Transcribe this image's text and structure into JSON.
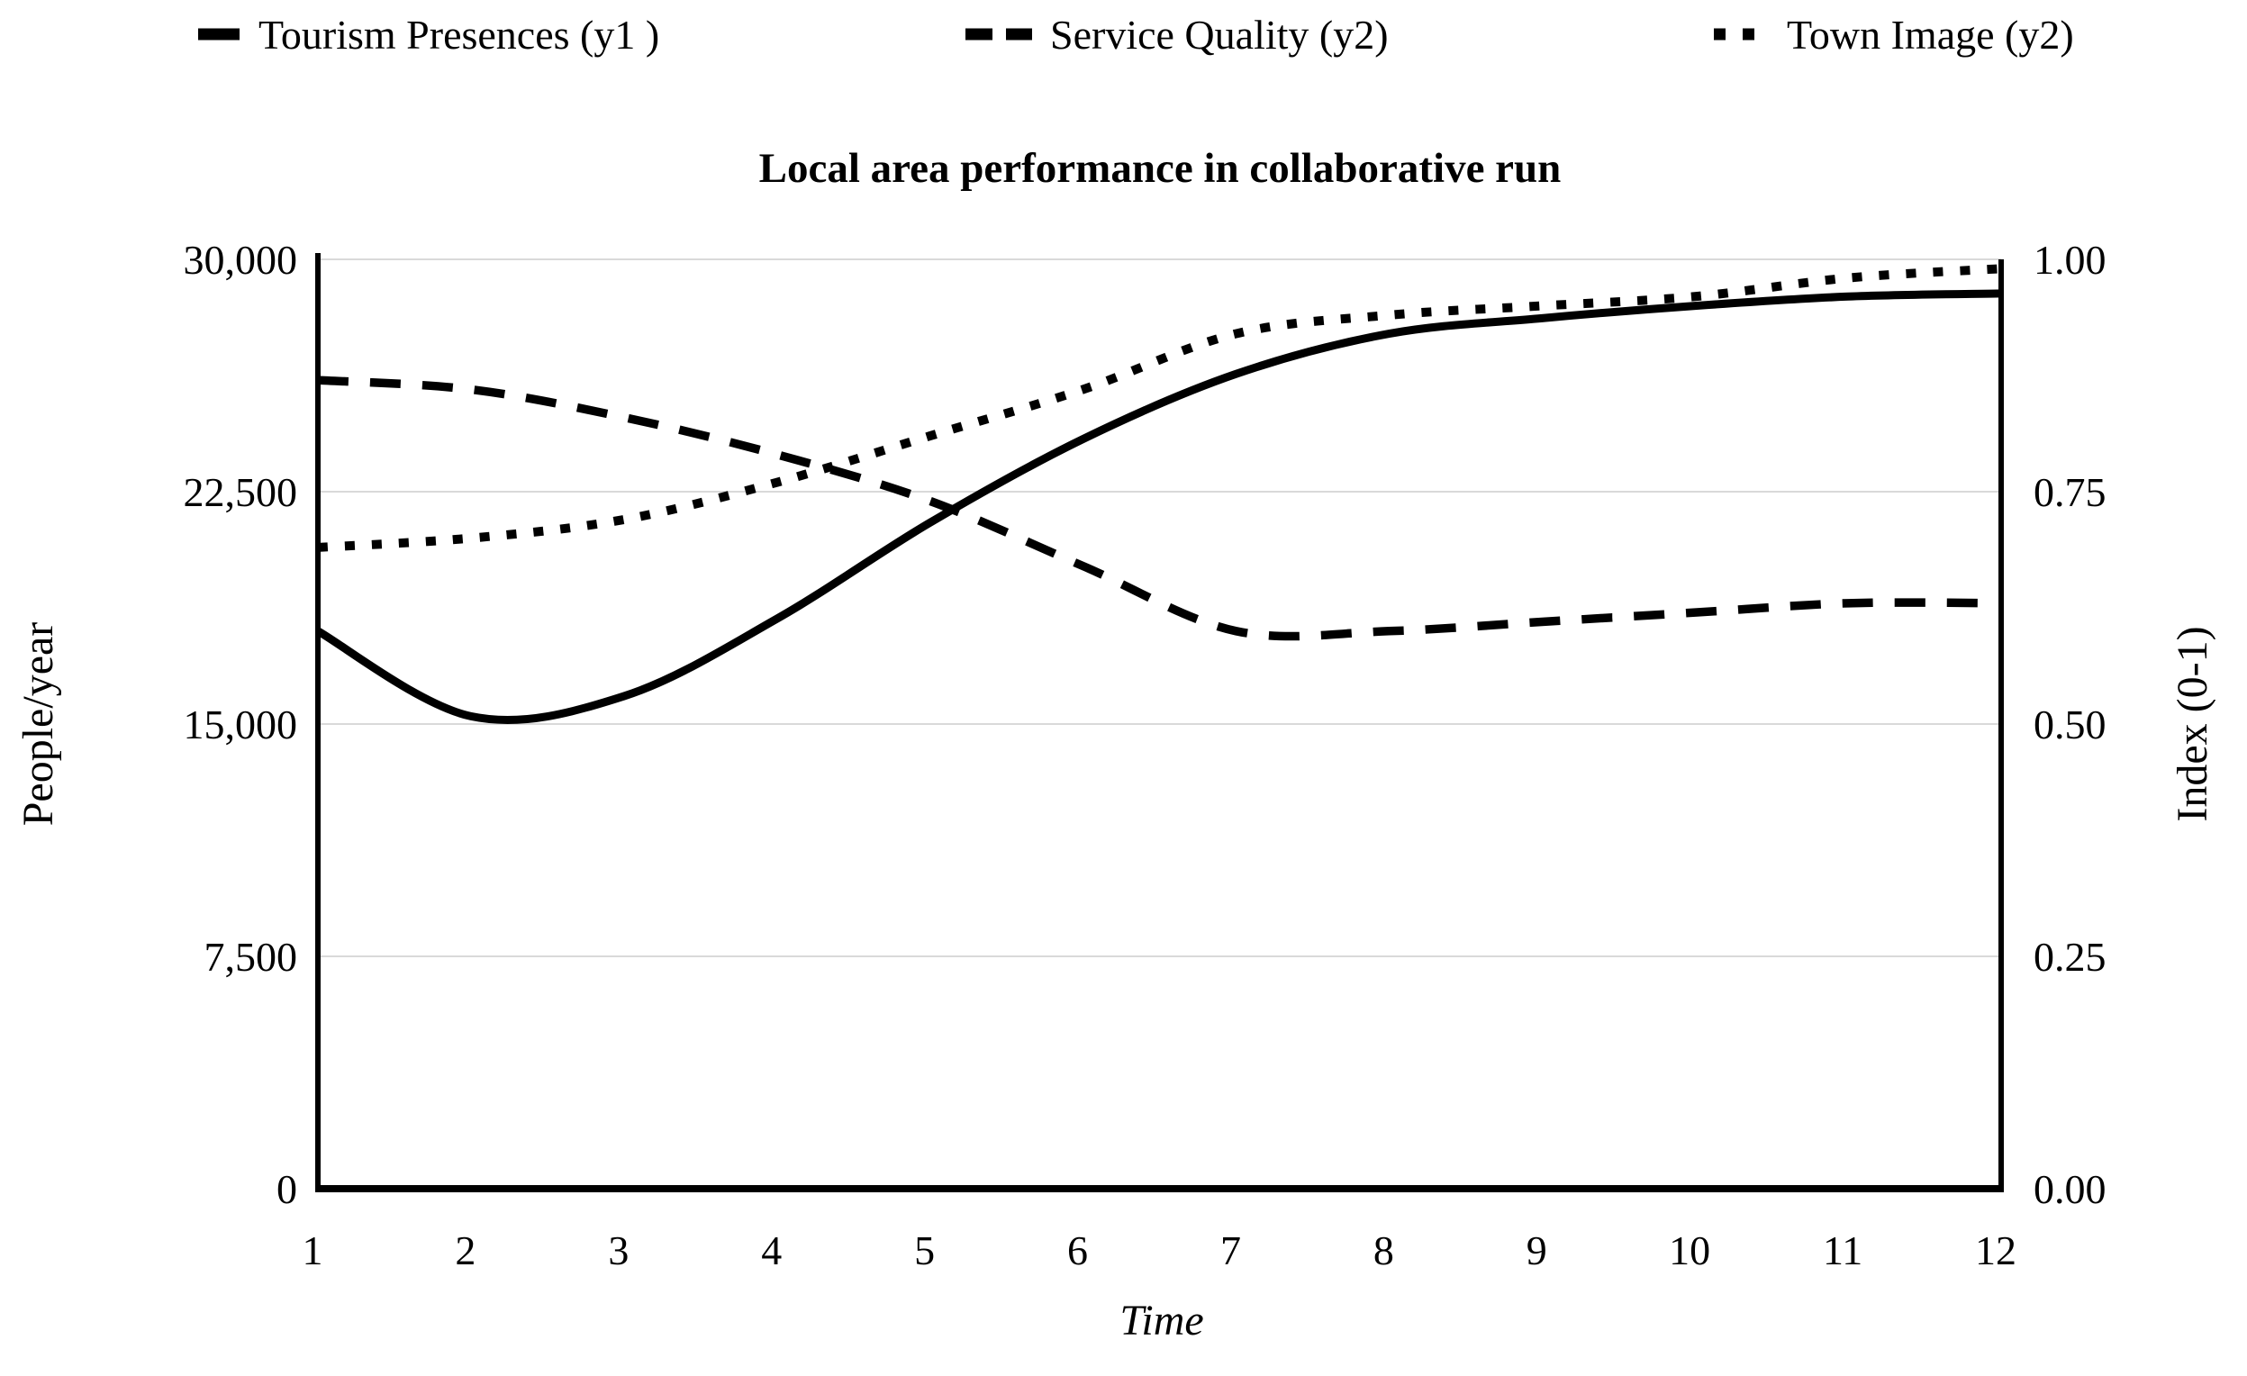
{
  "title": "Local area performance in collaborative run",
  "legend": {
    "items": [
      {
        "label": "Tourism Presences (y1 )",
        "style": "solid"
      },
      {
        "label": "Service Quality (y2)",
        "style": "dashed"
      },
      {
        "label": "Town Image (y2)",
        "style": "dotted"
      }
    ]
  },
  "axes": {
    "x": {
      "label": "Time",
      "tick_labels": [
        "1",
        "2",
        "3",
        "4",
        "5",
        "6",
        "7",
        "8",
        "9",
        "10",
        "11",
        "12"
      ],
      "min": 1,
      "max": 12
    },
    "y_left": {
      "label": "People/year",
      "tick_labels": [
        "0",
        "7,500",
        "15,000",
        "22,500",
        "30,000"
      ],
      "min": 0,
      "max": 30000
    },
    "y_right": {
      "label": "Index (0-1)",
      "tick_labels": [
        "0.00",
        "0.25",
        "0.50",
        "0.75",
        "1.00"
      ],
      "min": 0,
      "max": 1
    }
  },
  "colors": {
    "line": "#000000",
    "grid": "#d9d9d9",
    "background": "#ffffff",
    "text": "#000000"
  },
  "chart_data": {
    "type": "line",
    "title": "Local area performance in collaborative run",
    "xlabel": "Time",
    "ylabel_left": "People/year",
    "ylabel_right": "Index (0-1)",
    "x": [
      1,
      2,
      3,
      4,
      5,
      6,
      7,
      8,
      9,
      10,
      11,
      12
    ],
    "xlim": [
      1,
      12
    ],
    "ylim_left": [
      0,
      30000
    ],
    "ylim_right": [
      0,
      1
    ],
    "grid": true,
    "legend_position": "top",
    "series": [
      {
        "name": "Tourism Presences (y1 )",
        "axis": "left",
        "line_style": "solid",
        "values": [
          18000,
          15250,
          15900,
          18400,
          21500,
          24200,
          26300,
          27600,
          28100,
          28500,
          28800,
          28900
        ]
      },
      {
        "name": "Service Quality (y2)",
        "axis": "right",
        "line_style": "dashed",
        "values": [
          0.87,
          0.86,
          0.83,
          0.79,
          0.74,
          0.67,
          0.6,
          0.6,
          0.61,
          0.62,
          0.63,
          0.63
        ]
      },
      {
        "name": "Town Image (y2)",
        "axis": "right",
        "line_style": "dotted",
        "values": [
          0.69,
          0.7,
          0.72,
          0.76,
          0.81,
          0.86,
          0.92,
          0.94,
          0.95,
          0.96,
          0.98,
          0.99
        ]
      }
    ]
  }
}
